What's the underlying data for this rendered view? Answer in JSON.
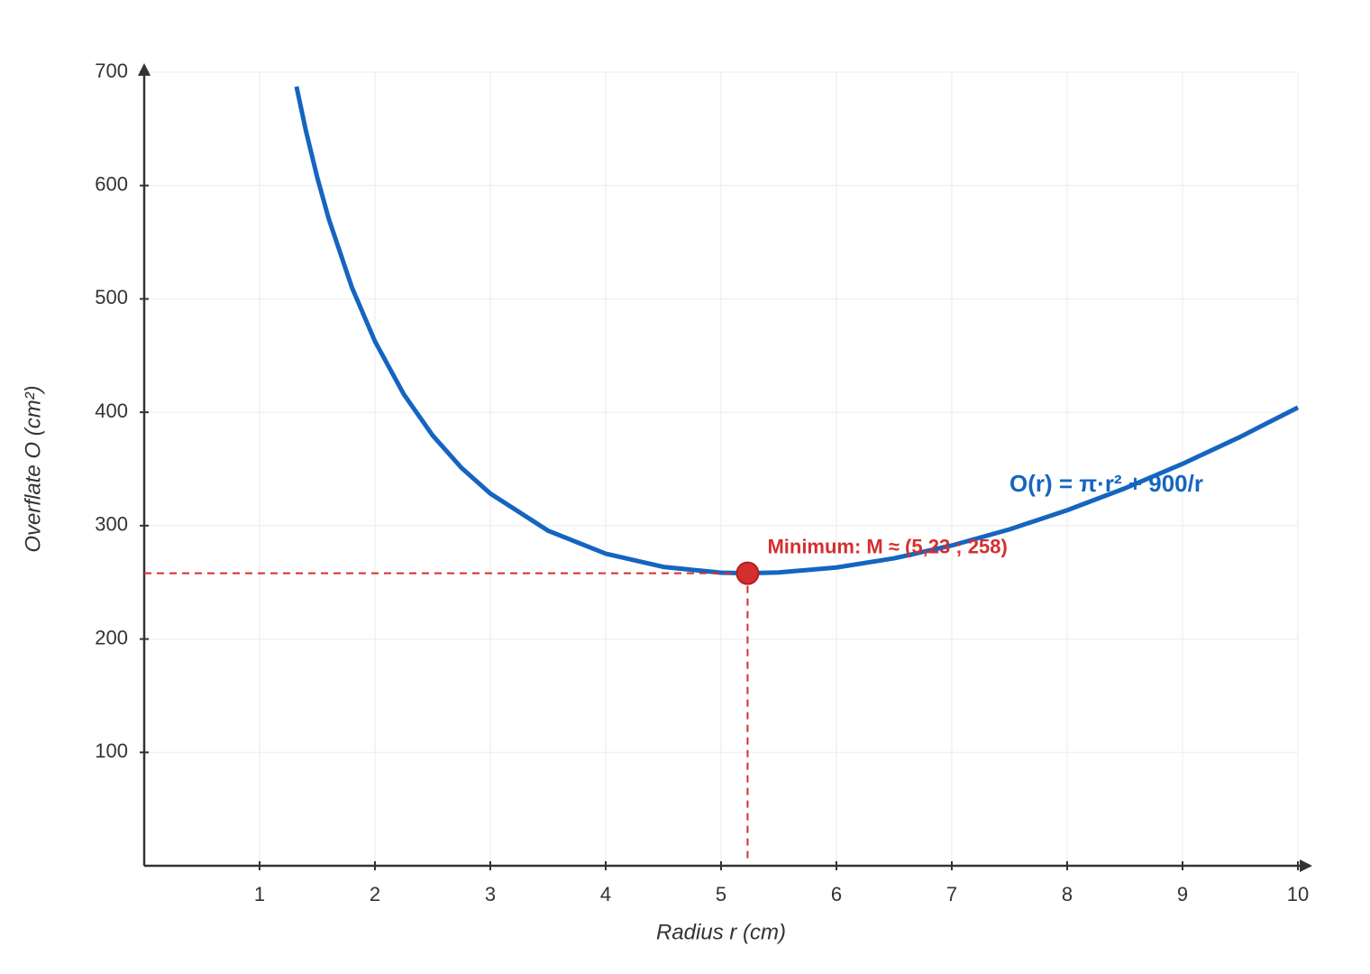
{
  "chart_data": {
    "type": "line",
    "x_label": "Radius r (cm)",
    "y_label": "Overflate O (cm²)",
    "xlim": [
      0,
      10
    ],
    "ylim": [
      0,
      700
    ],
    "xticks": [
      1,
      2,
      3,
      4,
      5,
      6,
      7,
      8,
      9,
      10
    ],
    "yticks": [
      100,
      200,
      300,
      400,
      500,
      600,
      700
    ],
    "grid": true,
    "curve": {
      "color": "#1565c0",
      "x": [
        1.32,
        1.4,
        1.5,
        1.6,
        1.8,
        2,
        2.25,
        2.5,
        2.75,
        3,
        3.5,
        4,
        4.5,
        5,
        5.23,
        5.5,
        6,
        6.5,
        7,
        7.5,
        8,
        8.5,
        9,
        9.5,
        10
      ],
      "values": [
        687.3,
        649.0,
        607.1,
        570.5,
        510.2,
        462.6,
        415.9,
        379.6,
        351.0,
        328.3,
        295.6,
        275.3,
        263.6,
        258.5,
        258.0,
        258.7,
        263.1,
        271.2,
        282.5,
        296.7,
        313.6,
        332.9,
        354.5,
        378.3,
        404.2
      ],
      "label": "O(r) = π·r² + 900/r"
    },
    "minimum": {
      "x": 5.23,
      "y": 258,
      "color": "#d32f2f",
      "label": "Minimum: M ≈ (5,23 ; 258)"
    }
  }
}
